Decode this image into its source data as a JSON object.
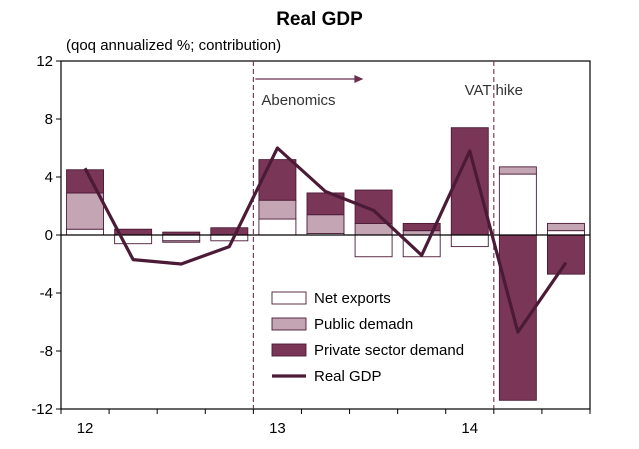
{
  "chart_data": {
    "type": "bar",
    "title": "Real GDP",
    "subtitle": "(qoq annualized %; contribution)",
    "ylim": [
      -12,
      12
    ],
    "yticks": [
      12,
      8,
      4,
      0,
      -4,
      -8,
      -12
    ],
    "year_labels": [
      {
        "label": "12",
        "quarter_index": 0
      },
      {
        "label": "13",
        "quarter_index": 4
      },
      {
        "label": "14",
        "quarter_index": 8
      }
    ],
    "series": [
      {
        "name": "Net exports",
        "type": "stacked-bar",
        "color": "#ffffff",
        "values": [
          0.4,
          -0.6,
          -0.4,
          -0.4,
          1.1,
          0.1,
          -1.5,
          -1.5,
          -0.8,
          4.2,
          0.3
        ]
      },
      {
        "name": "Public demadn",
        "type": "stacked-bar",
        "color": "#c4a5b4",
        "values": [
          2.5,
          0.0,
          -0.1,
          0.0,
          1.3,
          1.3,
          0.8,
          0.3,
          0.0,
          0.5,
          0.5
        ]
      },
      {
        "name": "Private sector demand",
        "type": "stacked-bar",
        "color": "#7a3656",
        "values": [
          1.6,
          0.4,
          0.2,
          0.5,
          2.8,
          1.5,
          2.3,
          0.5,
          7.4,
          -11.4,
          -2.7
        ]
      },
      {
        "name": "Real GDP",
        "type": "line",
        "color": "#4b1a36",
        "values": [
          4.6,
          -1.7,
          -2.0,
          -0.8,
          6.0,
          3.0,
          1.7,
          -1.4,
          5.8,
          -6.7,
          -1.9
        ]
      }
    ],
    "vlines": [
      {
        "after_quarter_index": 3,
        "label": "Abenomics",
        "arrow": true
      },
      {
        "after_quarter_index": 8,
        "label": "VAT hike",
        "arrow": false
      }
    ],
    "legend": {
      "placement": "bottom-center"
    },
    "grid": false
  }
}
